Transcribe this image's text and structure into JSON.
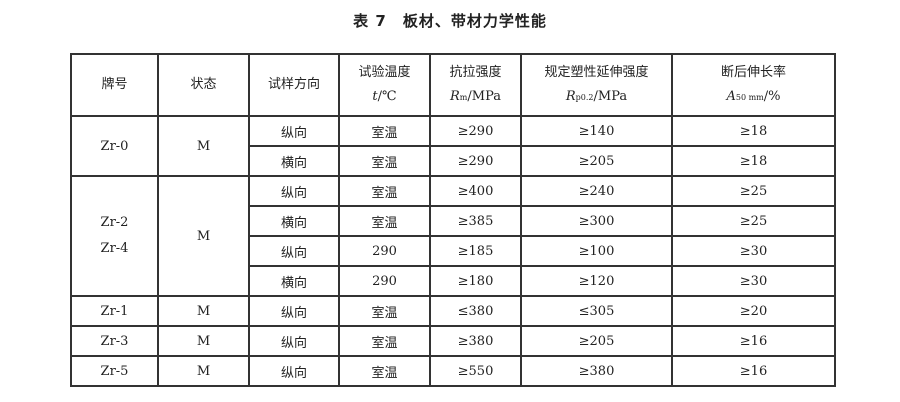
{
  "title": {
    "number": "表 7",
    "text": "板材、带材力学性能"
  },
  "headers": [
    {
      "line1": "牌号"
    },
    {
      "line1": "状态"
    },
    {
      "line1": "试样方向"
    },
    {
      "line1": "试验温度",
      "symbol": "t",
      "unit": "/℃"
    },
    {
      "line1": "抗拉强度",
      "symbol": "R",
      "sub": "m",
      "unit": "/MPa"
    },
    {
      "line1": "规定塑性延伸强度",
      "symbol": "R",
      "sub": "p0.2",
      "unit": "/MPa"
    },
    {
      "line1": "断后伸长率",
      "symbol": "A",
      "sub": "50 mm",
      "unit": "/%"
    }
  ],
  "groups": [
    {
      "grade": "Zr-0",
      "grade2": "",
      "state": "M",
      "rows": [
        {
          "dir": "纵向",
          "temp": "室温",
          "rm": "≥290",
          "rp": "≥140",
          "a": "≥18"
        },
        {
          "dir": "横向",
          "temp": "室温",
          "rm": "≥290",
          "rp": "≥205",
          "a": "≥18"
        }
      ]
    },
    {
      "grade": "Zr-2",
      "grade2": "Zr-4",
      "state": "M",
      "rows": [
        {
          "dir": "纵向",
          "temp": "室温",
          "rm": "≥400",
          "rp": "≥240",
          "a": "≥25"
        },
        {
          "dir": "横向",
          "temp": "室温",
          "rm": "≥385",
          "rp": "≥300",
          "a": "≥25"
        },
        {
          "dir": "纵向",
          "temp": "290",
          "rm": "≥185",
          "rp": "≥100",
          "a": "≥30"
        },
        {
          "dir": "横向",
          "temp": "290",
          "rm": "≥180",
          "rp": "≥120",
          "a": "≥30"
        }
      ]
    },
    {
      "grade": "Zr-1",
      "grade2": "",
      "state": "M",
      "rows": [
        {
          "dir": "纵向",
          "temp": "室温",
          "rm": "≤380",
          "rp": "≤305",
          "a": "≥20"
        }
      ]
    },
    {
      "grade": "Zr-3",
      "grade2": "",
      "state": "M",
      "rows": [
        {
          "dir": "纵向",
          "temp": "室温",
          "rm": "≥380",
          "rp": "≥205",
          "a": "≥16"
        }
      ]
    },
    {
      "grade": "Zr-5",
      "grade2": "",
      "state": "M",
      "rows": [
        {
          "dir": "纵向",
          "temp": "室温",
          "rm": "≥550",
          "rp": "≥380",
          "a": "≥16"
        }
      ]
    }
  ]
}
